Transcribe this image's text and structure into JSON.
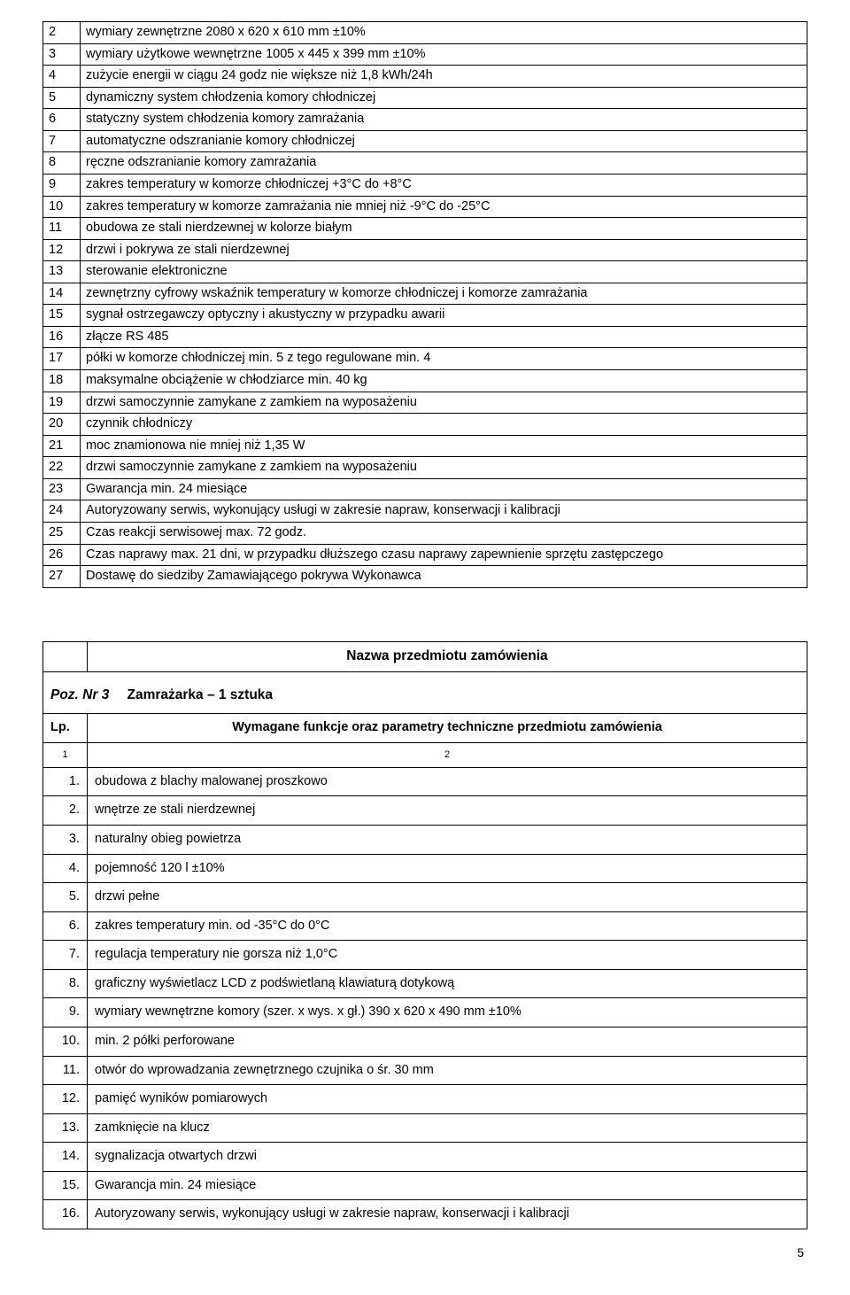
{
  "table1": {
    "rows": [
      {
        "n": "2",
        "t": "wymiary zewnętrzne 2080 x 620 x 610 mm ±10%"
      },
      {
        "n": "3",
        "t": "wymiary użytkowe wewnętrzne 1005 x 445 x 399 mm ±10%"
      },
      {
        "n": "4",
        "t": "zużycie energii w ciągu 24 godz nie większe niż 1,8 kWh/24h"
      },
      {
        "n": "5",
        "t": "dynamiczny system chłodzenia komory chłodniczej"
      },
      {
        "n": "6",
        "t": "statyczny system chłodzenia komory zamrażania"
      },
      {
        "n": "7",
        "t": "automatyczne odszranianie komory chłodniczej"
      },
      {
        "n": "8",
        "t": "ręczne odszranianie komory zamrażania"
      },
      {
        "n": "9",
        "t": "zakres temperatury w komorze chłodniczej +3°C do +8°C"
      },
      {
        "n": "10",
        "t": "zakres temperatury w komorze zamrażania nie mniej niż -9°C do -25°C"
      },
      {
        "n": "11",
        "t": "obudowa ze stali nierdzewnej w kolorze białym"
      },
      {
        "n": "12",
        "t": "drzwi i pokrywa ze stali nierdzewnej"
      },
      {
        "n": "13",
        "t": "sterowanie elektroniczne"
      },
      {
        "n": "14",
        "t": "zewnętrzny cyfrowy wskaźnik temperatury w komorze chłodniczej i komorze zamrażania"
      },
      {
        "n": "15",
        "t": "sygnał ostrzegawczy optyczny i akustyczny w przypadku awarii"
      },
      {
        "n": "16",
        "t": "złącze RS 485"
      },
      {
        "n": "17",
        "t": "półki w komorze chłodniczej min. 5 z tego regulowane min. 4"
      },
      {
        "n": "18",
        "t": "maksymalne obciążenie w chłodziarce min. 40 kg"
      },
      {
        "n": "19",
        "t": "drzwi samoczynnie zamykane z zamkiem na wyposażeniu"
      },
      {
        "n": "20",
        "t": "czynnik chłodniczy"
      },
      {
        "n": "21",
        "t": "moc znamionowa nie mniej niż 1,35 W"
      },
      {
        "n": "22",
        "t": "drzwi samoczynnie zamykane z zamkiem na wyposażeniu"
      },
      {
        "n": "23",
        "t": "Gwarancja min. 24 miesiące"
      },
      {
        "n": "24",
        "t": "Autoryzowany serwis, wykonujący usługi w zakresie napraw, konserwacji i kalibracji"
      },
      {
        "n": "25",
        "t": "Czas reakcji serwisowej max. 72 godz."
      },
      {
        "n": "26",
        "t": "Czas naprawy max. 21 dni, w przypadku dłuższego czasu naprawy zapewnienie sprzętu zastępczego"
      },
      {
        "n": "27",
        "t": "Dostawę do siedziby Zamawiającego pokrywa Wykonawca"
      }
    ]
  },
  "section_title": "Nazwa przedmiotu zamówienia",
  "poz": {
    "prefix": "Poz. Nr  3",
    "name": "Zamrażarka  – 1 sztuka"
  },
  "lp_label": "Lp.",
  "req_label": "Wymagane funkcje oraz parametry techniczne przedmiotu zamówienia",
  "sub_1": "1",
  "sub_2": "2",
  "table2": {
    "rows": [
      {
        "n": "1.",
        "t": "obudowa z blachy malowanej proszkowo"
      },
      {
        "n": "2.",
        "t": "wnętrze ze stali nierdzewnej"
      },
      {
        "n": "3.",
        "t": "naturalny obieg powietrza"
      },
      {
        "n": "4.",
        "t": "pojemność 120 l ±10%"
      },
      {
        "n": "5.",
        "t": "drzwi pełne"
      },
      {
        "n": "6.",
        "t": "zakres temperatury min. od -35°C do 0°C"
      },
      {
        "n": "7.",
        "t": "regulacja temperatury nie gorsza niż 1,0°C"
      },
      {
        "n": "8.",
        "t": "graficzny wyświetlacz LCD z podświetlaną klawiaturą dotykową"
      },
      {
        "n": "9.",
        "t": "wymiary wewnętrzne komory (szer. x wys. x gł.) 390 x 620 x 490 mm ±10%"
      },
      {
        "n": "10.",
        "t": "min. 2 półki perforowane"
      },
      {
        "n": "11.",
        "t": "otwór do wprowadzania zewnętrznego czujnika o śr. 30 mm"
      },
      {
        "n": "12.",
        "t": "pamięć wyników pomiarowych"
      },
      {
        "n": "13.",
        "t": "zamknięcie na klucz"
      },
      {
        "n": "14.",
        "t": "sygnalizacja otwartych drzwi"
      },
      {
        "n": "15.",
        "t": "Gwarancja min. 24 miesiące"
      },
      {
        "n": "16.",
        "t": "Autoryzowany serwis, wykonujący usługi w zakresie napraw, konserwacji i kalibracji"
      }
    ]
  },
  "page_number": "5"
}
